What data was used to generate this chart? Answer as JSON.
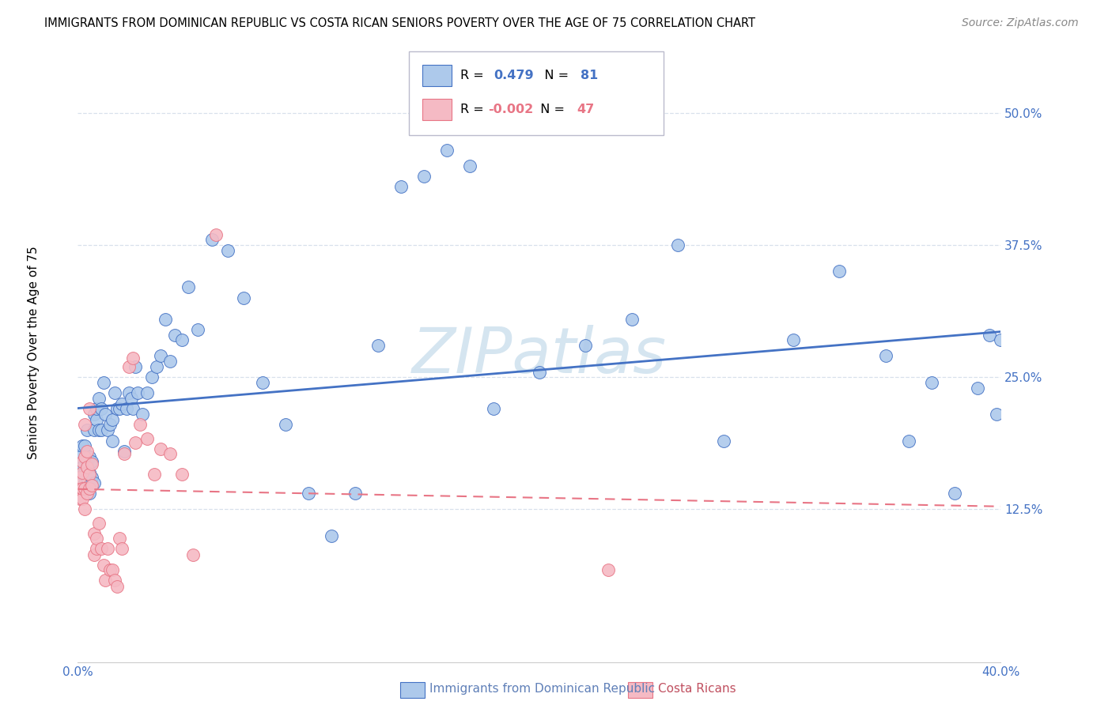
{
  "title": "IMMIGRANTS FROM DOMINICAN REPUBLIC VS COSTA RICAN SENIORS POVERTY OVER THE AGE OF 75 CORRELATION CHART",
  "source": "Source: ZipAtlas.com",
  "ylabel": "Seniors Poverty Over the Age of 75",
  "xlabel_blue": "Immigrants from Dominican Republic",
  "xlabel_pink": "Costa Ricans",
  "xlim": [
    0.0,
    0.4
  ],
  "ylim": [
    -0.02,
    0.56
  ],
  "yticks": [
    0.125,
    0.25,
    0.375,
    0.5
  ],
  "ytick_labels": [
    "12.5%",
    "25.0%",
    "37.5%",
    "50.0%"
  ],
  "xticks": [
    0.0,
    0.1,
    0.2,
    0.3,
    0.4
  ],
  "xtick_labels": [
    "0.0%",
    "",
    "",
    "",
    "40.0%"
  ],
  "R_blue": 0.479,
  "N_blue": 81,
  "R_pink": -0.002,
  "N_pink": 47,
  "blue_scatter_x": [
    0.001,
    0.001,
    0.002,
    0.002,
    0.003,
    0.003,
    0.003,
    0.004,
    0.004,
    0.004,
    0.005,
    0.005,
    0.005,
    0.006,
    0.006,
    0.007,
    0.007,
    0.007,
    0.008,
    0.008,
    0.009,
    0.009,
    0.01,
    0.01,
    0.011,
    0.012,
    0.013,
    0.014,
    0.015,
    0.015,
    0.016,
    0.017,
    0.018,
    0.019,
    0.02,
    0.021,
    0.022,
    0.023,
    0.024,
    0.025,
    0.026,
    0.028,
    0.03,
    0.032,
    0.034,
    0.036,
    0.038,
    0.04,
    0.042,
    0.045,
    0.048,
    0.052,
    0.058,
    0.065,
    0.072,
    0.08,
    0.09,
    0.1,
    0.11,
    0.12,
    0.13,
    0.14,
    0.15,
    0.16,
    0.17,
    0.18,
    0.2,
    0.22,
    0.24,
    0.26,
    0.28,
    0.31,
    0.33,
    0.35,
    0.36,
    0.37,
    0.38,
    0.39,
    0.395,
    0.398,
    0.4
  ],
  "blue_scatter_y": [
    0.16,
    0.175,
    0.165,
    0.185,
    0.15,
    0.16,
    0.185,
    0.155,
    0.17,
    0.2,
    0.14,
    0.16,
    0.175,
    0.155,
    0.17,
    0.15,
    0.2,
    0.215,
    0.21,
    0.22,
    0.2,
    0.23,
    0.2,
    0.22,
    0.245,
    0.215,
    0.2,
    0.205,
    0.19,
    0.21,
    0.235,
    0.22,
    0.22,
    0.225,
    0.18,
    0.22,
    0.235,
    0.23,
    0.22,
    0.26,
    0.235,
    0.215,
    0.235,
    0.25,
    0.26,
    0.27,
    0.305,
    0.265,
    0.29,
    0.285,
    0.335,
    0.295,
    0.38,
    0.37,
    0.325,
    0.245,
    0.205,
    0.14,
    0.1,
    0.14,
    0.28,
    0.43,
    0.44,
    0.465,
    0.45,
    0.22,
    0.255,
    0.28,
    0.305,
    0.375,
    0.19,
    0.285,
    0.35,
    0.27,
    0.19,
    0.245,
    0.14,
    0.24,
    0.29,
    0.215,
    0.285
  ],
  "pink_scatter_x": [
    0.001,
    0.001,
    0.001,
    0.002,
    0.002,
    0.002,
    0.002,
    0.003,
    0.003,
    0.003,
    0.003,
    0.004,
    0.004,
    0.004,
    0.005,
    0.005,
    0.005,
    0.006,
    0.006,
    0.007,
    0.007,
    0.008,
    0.008,
    0.009,
    0.01,
    0.011,
    0.012,
    0.013,
    0.014,
    0.015,
    0.016,
    0.017,
    0.018,
    0.019,
    0.02,
    0.022,
    0.024,
    0.025,
    0.027,
    0.03,
    0.033,
    0.036,
    0.04,
    0.045,
    0.05,
    0.06,
    0.23
  ],
  "pink_scatter_y": [
    0.145,
    0.135,
    0.155,
    0.135,
    0.145,
    0.16,
    0.17,
    0.125,
    0.145,
    0.175,
    0.205,
    0.14,
    0.165,
    0.18,
    0.145,
    0.158,
    0.22,
    0.148,
    0.168,
    0.082,
    0.102,
    0.088,
    0.098,
    0.112,
    0.088,
    0.072,
    0.058,
    0.088,
    0.068,
    0.068,
    0.058,
    0.052,
    0.098,
    0.088,
    0.178,
    0.26,
    0.268,
    0.188,
    0.205,
    0.192,
    0.158,
    0.182,
    0.178,
    0.158,
    0.082,
    0.385,
    0.068
  ],
  "blue_color": "#adc9eb",
  "pink_color": "#f5bac4",
  "blue_line_color": "#4472c4",
  "pink_line_color": "#e87585",
  "blue_tick_color": "#4472c4",
  "grid_color": "#d8e0ec",
  "watermark_color": "#d5e5f0",
  "background_color": "#ffffff"
}
